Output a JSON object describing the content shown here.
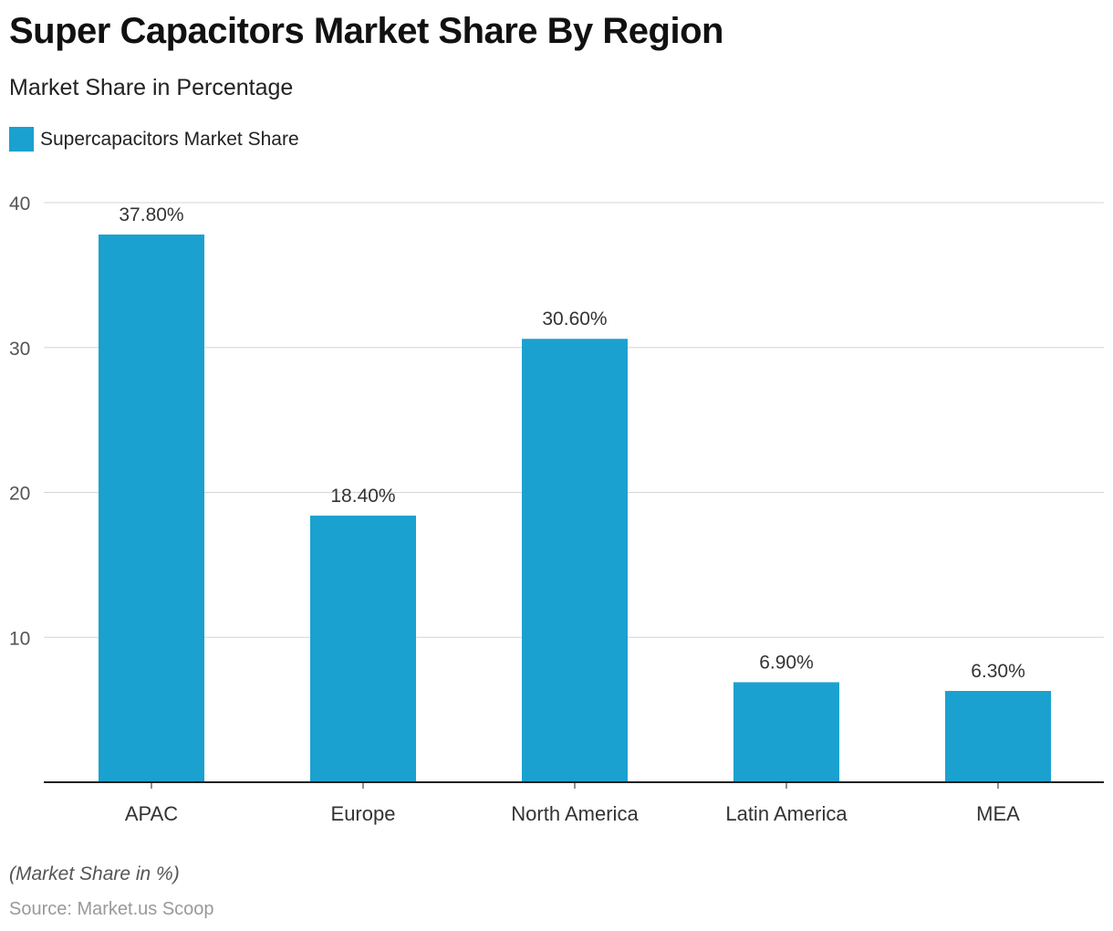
{
  "title": "Super Capacitors Market Share By Region",
  "subtitle": "Market Share in Percentage",
  "note": "(Market Share in %)",
  "source": "Source: Market.us Scoop",
  "chart_data": {
    "type": "bar",
    "categories": [
      "APAC",
      "Europe",
      "North America",
      "Latin America",
      "MEA"
    ],
    "series": [
      {
        "name": "Supercapacitors Market Share",
        "values": [
          37.8,
          18.4,
          30.6,
          6.9,
          6.3
        ],
        "color": "#1ba1cf"
      }
    ],
    "data_labels": [
      "37.80%",
      "18.40%",
      "30.60%",
      "6.90%",
      "6.30%"
    ],
    "ylim": [
      0,
      40
    ],
    "yticks": [
      10,
      20,
      30,
      40
    ],
    "grid": true,
    "legend": "top-left"
  }
}
